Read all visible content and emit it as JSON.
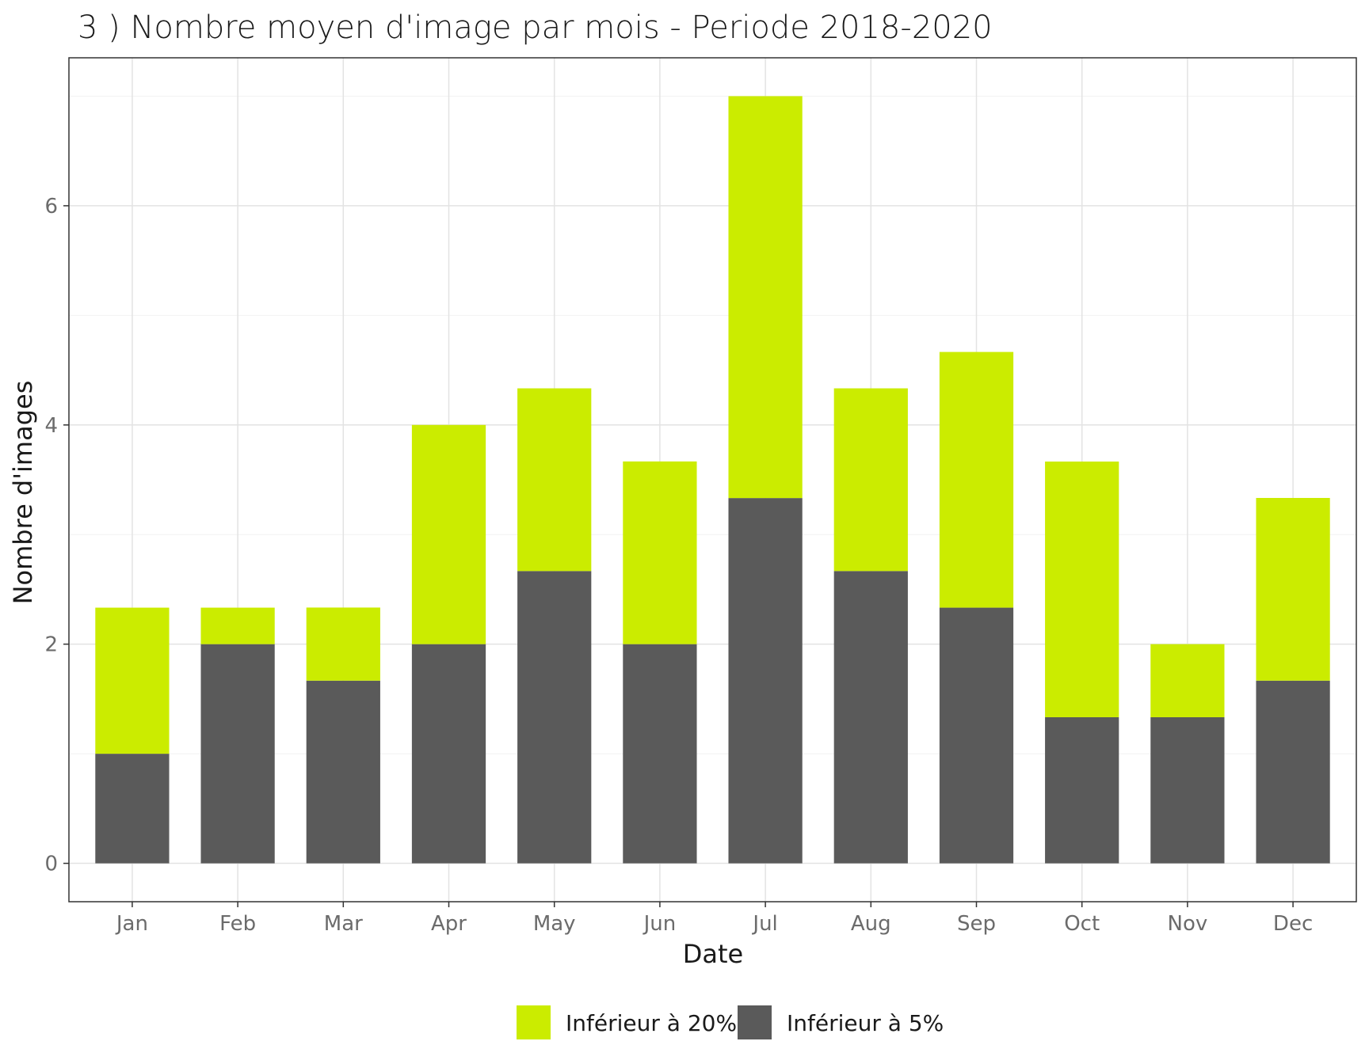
{
  "chart_data": {
    "type": "bar",
    "stacked": true,
    "title": "3 ) Nombre moyen d'image par mois - Periode 2018-2020",
    "xlabel": "Date",
    "ylabel": "Nombre d'images",
    "categories": [
      "Jan",
      "Feb",
      "Mar",
      "Apr",
      "May",
      "Jun",
      "Jul",
      "Aug",
      "Sep",
      "Oct",
      "Nov",
      "Dec"
    ],
    "yticks": [
      "0",
      "2",
      "4",
      "6"
    ],
    "ylim": [
      -0.35,
      7.35
    ],
    "grid": true,
    "legend_position": "bottom",
    "series": [
      {
        "name": "Inférieur à 5%",
        "color": "#5a5a5a",
        "values": [
          1.0,
          2.0,
          1.667,
          2.0,
          2.667,
          2.0,
          3.333,
          2.667,
          2.333,
          1.333,
          1.333,
          1.667
        ]
      },
      {
        "name": "Inférieur à 20%",
        "color": "#cbec00",
        "values": [
          1.333,
          0.333,
          0.667,
          2.0,
          1.667,
          1.667,
          3.667,
          1.667,
          2.333,
          2.333,
          0.667,
          1.667
        ]
      }
    ],
    "legend_order": [
      "Inférieur à 20%",
      "Inférieur à 5%"
    ]
  }
}
